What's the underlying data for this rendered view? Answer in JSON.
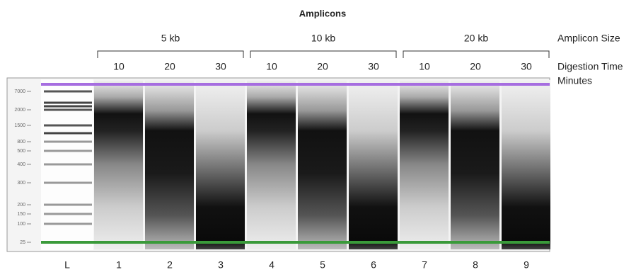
{
  "title": "Amplicons",
  "groups": [
    {
      "label": "5 kb",
      "times": [
        "10",
        "20",
        "30"
      ]
    },
    {
      "label": "10 kb",
      "times": [
        "10",
        "20",
        "30"
      ]
    },
    {
      "label": "20 kb",
      "times": [
        "10",
        "20",
        "30"
      ]
    }
  ],
  "size_label": "Amplicon Size",
  "time_label": "Digestion Time",
  "time_unit": "Minutes",
  "ladder": [
    "7000",
    "2000",
    "1500",
    "800",
    "500",
    "400",
    "300",
    "200",
    "150",
    "100",
    "25"
  ],
  "lanes": [
    "L",
    "1",
    "2",
    "3",
    "4",
    "5",
    "6",
    "7",
    "8",
    "9"
  ]
}
